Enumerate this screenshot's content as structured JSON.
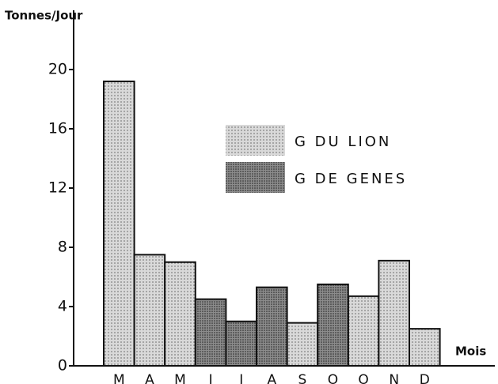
{
  "chart_data": {
    "type": "bar",
    "y_label": "Tonnes/Jour",
    "x_label": "Mois",
    "categories": [
      "M",
      "A",
      "M",
      "J",
      "J",
      "A",
      "S",
      "O",
      "O",
      "N",
      "D"
    ],
    "series": [
      {
        "name": "G DU LION",
        "color": "#d9d9d9",
        "values": [
          19.2,
          7.5,
          7.0,
          null,
          null,
          null,
          2.9,
          null,
          4.7,
          7.1,
          2.5
        ]
      },
      {
        "name": "G DE GENES",
        "color": "#8c8c8c",
        "values": [
          null,
          null,
          null,
          4.5,
          3.0,
          5.3,
          null,
          5.5,
          null,
          null,
          null
        ]
      }
    ],
    "ylim": [
      0,
      24
    ],
    "yticks": [
      0,
      4,
      8,
      12,
      16,
      20
    ],
    "grid": false
  }
}
